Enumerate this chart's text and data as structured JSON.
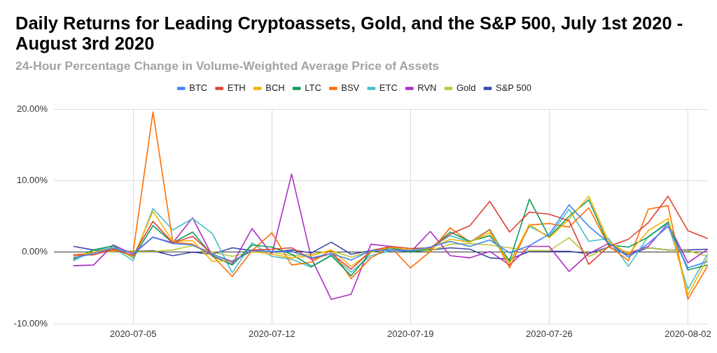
{
  "chart_data": {
    "type": "line",
    "title": "Daily Returns for Leading Cryptoassets, Gold, and the S&P 500, July 1st 2020 - August 3rd 2020",
    "subtitle": "24-Hour Percentage Change in Volume-Weighted Average Price of Assets",
    "x": [
      "2020-07-02",
      "2020-07-03",
      "2020-07-04",
      "2020-07-05",
      "2020-07-06",
      "2020-07-07",
      "2020-07-08",
      "2020-07-09",
      "2020-07-10",
      "2020-07-11",
      "2020-07-12",
      "2020-07-13",
      "2020-07-14",
      "2020-07-15",
      "2020-07-16",
      "2020-07-17",
      "2020-07-18",
      "2020-07-19",
      "2020-07-20",
      "2020-07-21",
      "2020-07-22",
      "2020-07-23",
      "2020-07-24",
      "2020-07-25",
      "2020-07-26",
      "2020-07-27",
      "2020-07-28",
      "2020-07-29",
      "2020-07-30",
      "2020-07-31",
      "2020-08-01",
      "2020-08-02",
      "2020-08-03"
    ],
    "xlim": [
      "2020-07-01",
      "2020-08-03"
    ],
    "xticks": [
      "2020-07-05",
      "2020-07-12",
      "2020-07-19",
      "2020-07-26",
      "2020-08-02"
    ],
    "ylim": [
      -10,
      20
    ],
    "yticks": [
      {
        "value": -10,
        "label": "-10.00%"
      },
      {
        "value": 0,
        "label": "0.00%"
      },
      {
        "value": 10,
        "label": "10.00%"
      },
      {
        "value": 20,
        "label": "20.00%"
      }
    ],
    "grid": true,
    "legend": "top",
    "marker": "none",
    "line_style": "solid",
    "series": [
      {
        "name": "BTC",
        "color": "#4285f4",
        "values": [
          -0.8,
          -0.2,
          0.6,
          -0.2,
          2.1,
          1.2,
          1.0,
          -0.3,
          -1.3,
          0.2,
          0.1,
          0.1,
          -0.8,
          -0.2,
          -1.1,
          0.2,
          0.3,
          0.2,
          0.7,
          1.5,
          0.8,
          1.7,
          -0.1,
          0.9,
          2.5,
          6.6,
          3.6,
          1.3,
          -0.7,
          1.2,
          3.6,
          -2.2,
          -1.3
        ]
      },
      {
        "name": "ETH",
        "color": "#db4437",
        "values": [
          -0.4,
          -0.4,
          0.4,
          -0.5,
          4.3,
          1.3,
          2.2,
          -0.3,
          -1.4,
          0.3,
          0.4,
          0.6,
          -1.0,
          -0.2,
          -2.4,
          0.2,
          0.8,
          0.5,
          0.6,
          2.5,
          3.7,
          7.1,
          2.8,
          5.6,
          5.3,
          4.4,
          -1.7,
          0.8,
          1.8,
          4.1,
          7.8,
          3.0,
          1.9
        ]
      },
      {
        "name": "BCH",
        "color": "#f4b400",
        "values": [
          -0.6,
          0.0,
          0.6,
          -0.7,
          5.7,
          1.5,
          1.6,
          -1.3,
          -1.2,
          0.1,
          -0.3,
          -0.8,
          -0.5,
          0.3,
          -2.0,
          0.0,
          0.7,
          0.3,
          0.5,
          1.8,
          1.4,
          2.7,
          -1.6,
          3.9,
          2.0,
          4.6,
          7.8,
          1.5,
          -0.3,
          3.0,
          4.7,
          -6.0,
          -0.8
        ]
      },
      {
        "name": "LTC",
        "color": "#0f9d58",
        "values": [
          -1.0,
          0.3,
          0.9,
          -0.8,
          3.7,
          1.3,
          2.8,
          -0.5,
          -1.8,
          1.0,
          0.7,
          -0.3,
          -2.0,
          -0.5,
          -3.3,
          0.0,
          0.6,
          0.0,
          0.4,
          2.8,
          1.5,
          2.3,
          -1.2,
          7.4,
          2.1,
          5.0,
          7.3,
          1.0,
          0.7,
          2.1,
          4.2,
          -2.5,
          -1.8
        ]
      },
      {
        "name": "BSV",
        "color": "#ff6d00",
        "values": [
          -0.4,
          -0.1,
          0.3,
          0.0,
          19.6,
          1.4,
          1.1,
          -0.5,
          -3.4,
          0.2,
          2.7,
          -1.8,
          -1.4,
          0.3,
          -3.7,
          -0.8,
          0.7,
          -2.2,
          0.1,
          3.4,
          1.4,
          3.1,
          -2.2,
          3.8,
          4.0,
          3.5,
          6.2,
          0.9,
          -1.2,
          6.0,
          6.5,
          -6.6,
          -1.9
        ]
      },
      {
        "name": "ETC",
        "color": "#46bdc6",
        "values": [
          -1.2,
          0.3,
          0.6,
          -1.2,
          6.1,
          3.1,
          4.7,
          2.6,
          -2.9,
          1.3,
          -0.6,
          -1.0,
          -2.1,
          -0.4,
          -2.8,
          -0.5,
          0.2,
          0.3,
          0.6,
          2.3,
          1.4,
          3.2,
          -1.4,
          3.6,
          2.2,
          6.0,
          1.5,
          1.9,
          -2.0,
          2.2,
          4.0,
          -5.2,
          -0.3
        ]
      },
      {
        "name": "RVN",
        "color": "#ab30c4",
        "values": [
          -1.9,
          -1.8,
          1.0,
          -0.3,
          2.1,
          1.3,
          4.8,
          -0.6,
          -1.7,
          3.3,
          -0.3,
          10.9,
          -0.9,
          -6.6,
          -5.9,
          1.1,
          0.8,
          0.0,
          2.9,
          -0.5,
          -0.8,
          0.1,
          -1.8,
          0.8,
          0.8,
          -2.7,
          -0.2,
          1.2,
          -0.2,
          0.8,
          4.0,
          -1.5,
          0.4
        ]
      },
      {
        "name": "Gold",
        "color": "#bfc43c",
        "values": [
          -0.9,
          0.0,
          0.1,
          0.1,
          0.1,
          0.3,
          0.9,
          0.0,
          -0.6,
          0.0,
          0.0,
          -0.5,
          -0.3,
          0.2,
          -0.7,
          0.1,
          0.3,
          0.3,
          0.2,
          1.1,
          1.2,
          1.0,
          0.6,
          0.2,
          0.2,
          2.0,
          -0.6,
          0.7,
          0.0,
          0.6,
          0.3,
          0.2,
          -0.6
        ]
      },
      {
        "name": "S&P 500",
        "color": "#3949ab",
        "values": [
          0.8,
          0.3,
          0.1,
          0.1,
          0.2,
          -0.5,
          0.0,
          -0.3,
          0.6,
          0.2,
          0.0,
          0.3,
          -0.1,
          1.4,
          -0.3,
          0.2,
          0.3,
          0.1,
          0.3,
          0.6,
          0.4,
          -0.8,
          -1.0,
          0.1,
          0.1,
          0.1,
          -0.2,
          0.7,
          -0.4,
          0.6,
          0.3,
          0.3,
          0.4
        ]
      }
    ]
  }
}
